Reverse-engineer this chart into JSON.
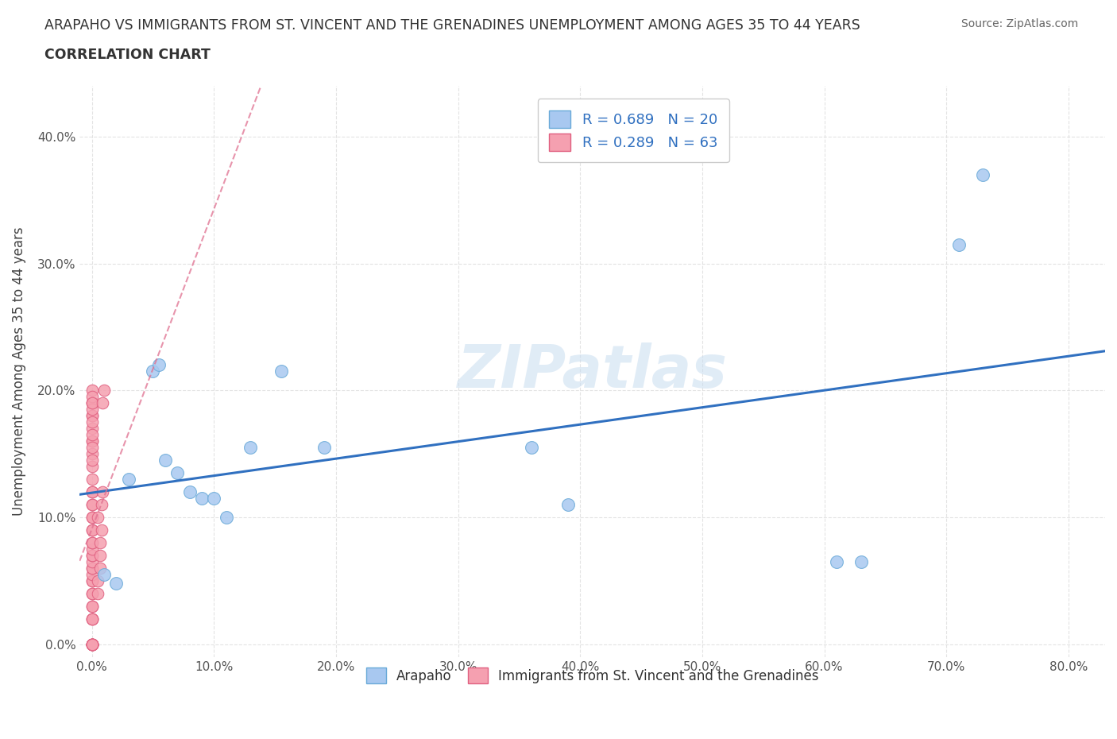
{
  "title_line1": "ARAPAHO VS IMMIGRANTS FROM ST. VINCENT AND THE GRENADINES UNEMPLOYMENT AMONG AGES 35 TO 44 YEARS",
  "title_line2": "CORRELATION CHART",
  "source_text": "Source: ZipAtlas.com",
  "ylabel": "Unemployment Among Ages 35 to 44 years",
  "xlim": [
    -0.01,
    0.83
  ],
  "ylim": [
    -0.01,
    0.44
  ],
  "xticks": [
    0.0,
    0.1,
    0.2,
    0.3,
    0.4,
    0.5,
    0.6,
    0.7,
    0.8
  ],
  "yticks": [
    0.0,
    0.1,
    0.2,
    0.3,
    0.4
  ],
  "xticklabels": [
    "0.0%",
    "10.0%",
    "20.0%",
    "30.0%",
    "40.0%",
    "50.0%",
    "60.0%",
    "70.0%",
    "80.0%"
  ],
  "yticklabels": [
    "0.0%",
    "10.0%",
    "20.0%",
    "30.0%",
    "40.0%"
  ],
  "watermark": "ZIPatlas",
  "arapaho_color": "#a8c8f0",
  "svg_color": "#f5a0b0",
  "arapaho_edge": "#6aaad8",
  "svg_edge": "#e06080",
  "line_color_arapaho": "#3070c0",
  "line_color_svg": "#e07090",
  "R_arapaho": 0.689,
  "N_arapaho": 20,
  "R_svg": 0.289,
  "N_svg": 63,
  "arapaho_x": [
    0.01,
    0.02,
    0.03,
    0.05,
    0.055,
    0.06,
    0.07,
    0.08,
    0.09,
    0.1,
    0.11,
    0.13,
    0.155,
    0.19,
    0.36,
    0.39,
    0.61,
    0.63,
    0.71,
    0.73
  ],
  "arapaho_y": [
    0.055,
    0.048,
    0.13,
    0.215,
    0.22,
    0.145,
    0.135,
    0.12,
    0.115,
    0.115,
    0.1,
    0.155,
    0.215,
    0.155,
    0.155,
    0.11,
    0.065,
    0.065,
    0.315,
    0.37
  ],
  "svg_x": [
    0.0,
    0.0,
    0.0,
    0.0,
    0.0,
    0.0,
    0.0,
    0.0,
    0.0,
    0.0,
    0.0,
    0.0,
    0.0,
    0.0,
    0.0,
    0.0,
    0.0,
    0.0,
    0.0,
    0.0,
    0.0,
    0.0,
    0.0,
    0.0,
    0.0,
    0.0,
    0.0,
    0.0,
    0.0,
    0.0,
    0.0,
    0.0,
    0.0,
    0.0,
    0.0,
    0.0,
    0.0,
    0.0,
    0.0,
    0.0,
    0.0,
    0.0,
    0.0,
    0.0,
    0.0,
    0.0,
    0.0,
    0.0,
    0.0,
    0.0,
    0.0,
    0.0,
    0.005,
    0.005,
    0.005,
    0.007,
    0.007,
    0.007,
    0.008,
    0.008,
    0.009,
    0.009,
    0.01
  ],
  "svg_y": [
    0.0,
    0.0,
    0.0,
    0.0,
    0.0,
    0.0,
    0.0,
    0.0,
    0.02,
    0.02,
    0.02,
    0.03,
    0.03,
    0.04,
    0.04,
    0.05,
    0.05,
    0.055,
    0.06,
    0.06,
    0.065,
    0.07,
    0.07,
    0.075,
    0.08,
    0.08,
    0.09,
    0.09,
    0.1,
    0.1,
    0.11,
    0.11,
    0.12,
    0.12,
    0.13,
    0.14,
    0.15,
    0.16,
    0.17,
    0.18,
    0.19,
    0.2,
    0.16,
    0.18,
    0.19,
    0.145,
    0.155,
    0.165,
    0.175,
    0.185,
    0.195,
    0.19,
    0.04,
    0.05,
    0.1,
    0.06,
    0.07,
    0.08,
    0.09,
    0.11,
    0.12,
    0.19,
    0.2
  ],
  "figsize": [
    14.06,
    9.3
  ],
  "dpi": 100
}
